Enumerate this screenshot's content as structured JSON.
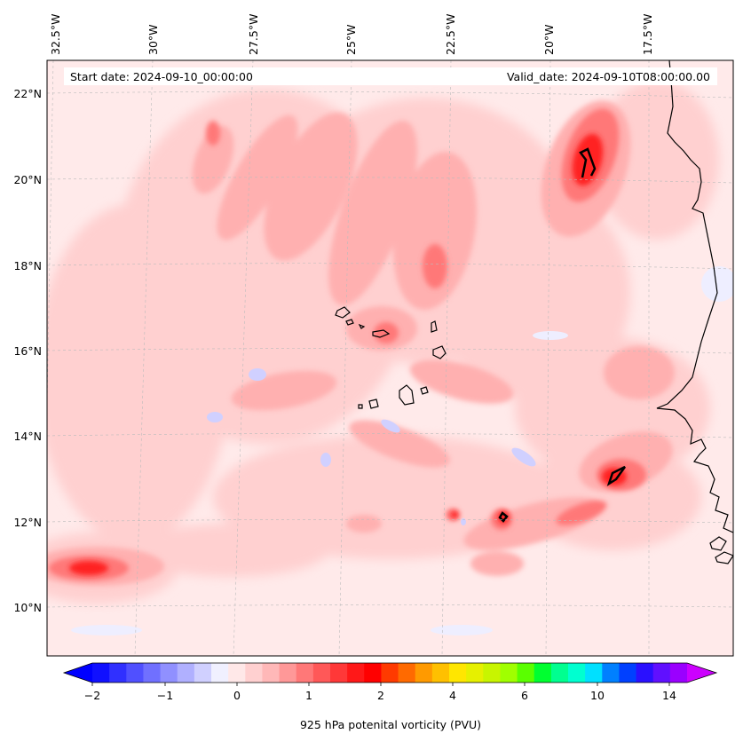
{
  "header": {
    "start_date": "Start date: 2024-09-10_00:00:00",
    "valid_date": "Valid_date: 2024-09-10T08:00:00.00"
  },
  "axes": {
    "lon_labels": [
      "32.5°W",
      "30°W",
      "27.5°W",
      "25°W",
      "22.5°W",
      "20°W",
      "17.5°W"
    ],
    "lat_labels": [
      "22°N",
      "20°N",
      "18°N",
      "16°N",
      "14°N",
      "12°N",
      "10°N"
    ]
  },
  "colorbar": {
    "label": "925 hPa potenital vorticity (PVU)",
    "ticks": [
      "−2",
      "−1",
      "0",
      "1",
      "2",
      "4",
      "6",
      "10",
      "14"
    ],
    "colors": [
      "#1010ff",
      "#3030ff",
      "#5050ff",
      "#7070ff",
      "#9090ff",
      "#b0b0ff",
      "#d0d0ff",
      "#f0f0ff",
      "#ffe8e8",
      "#ffd0d0",
      "#ffb8b8",
      "#ff9898",
      "#ff7878",
      "#ff5858",
      "#ff3838",
      "#ff1818",
      "#ff0000",
      "#ff3a00",
      "#ff6a00",
      "#ff9a00",
      "#ffc000",
      "#ffe600",
      "#e6f000",
      "#c8f500",
      "#a0ff00",
      "#5aff00",
      "#00ff30",
      "#00ff90",
      "#00ffd0",
      "#00e0ff",
      "#0080ff",
      "#0040ff",
      "#2a10ff",
      "#6010ff",
      "#9a00ff"
    ],
    "extend_low": "#0000ff",
    "extend_high": "#cc00ff"
  },
  "map_colors": {
    "background": "#ffeaea",
    "light": "#ffd0d0",
    "mid": "#ffb0b0",
    "strong": "#ff7878",
    "peak": "#ff2020",
    "negative": "#d0d0ff"
  }
}
